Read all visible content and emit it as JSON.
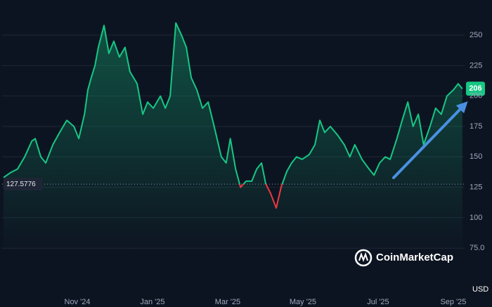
{
  "chart_data": {
    "type": "line",
    "x": [
      0.04,
      0.22,
      0.41,
      0.6,
      0.79,
      0.88,
      1.03,
      1.16,
      1.35,
      1.53,
      1.72,
      1.91,
      2.04,
      2.19,
      2.28,
      2.37,
      2.47,
      2.56,
      2.71,
      2.84,
      2.97,
      3.12,
      3.27,
      3.4,
      3.59,
      3.74,
      3.87,
      4.02,
      4.21,
      4.34,
      4.47,
      4.62,
      4.77,
      4.9,
      5.03,
      5.18,
      5.33,
      5.48,
      5.64,
      5.83,
      5.96,
      6.07,
      6.21,
      6.34,
      6.49,
      6.64,
      6.77,
      6.9,
      7.01,
      7.14,
      7.29,
      7.42,
      7.57,
      7.7,
      7.83,
      7.98,
      8.17,
      8.32,
      8.45,
      8.58,
      8.73,
      8.92,
      9.1,
      9.25,
      9.38,
      9.57,
      9.76,
      9.89,
      10.04,
      10.19,
      10.32,
      10.5,
      10.64,
      10.79,
      10.93,
      11.07,
      11.21,
      11.38,
      11.53,
      11.68,
      11.83,
      12.0,
      12.13,
      12.24
    ],
    "series": [
      {
        "color": "#16c784",
        "below_color": "#ea3943",
        "values": [
          133,
          137,
          140,
          150,
          163,
          165,
          150,
          145,
          160,
          170,
          180,
          175,
          165,
          185,
          205,
          215,
          225,
          240,
          258,
          235,
          245,
          232,
          240,
          220,
          210,
          185,
          195,
          190,
          200,
          190,
          200,
          260,
          250,
          240,
          215,
          205,
          190,
          195,
          175,
          150,
          145,
          165,
          140,
          125,
          130,
          130,
          140,
          145,
          128,
          120,
          108,
          125,
          138,
          145,
          150,
          148,
          152,
          160,
          180,
          170,
          175,
          168,
          160,
          150,
          160,
          148,
          140,
          135,
          145,
          150,
          148,
          165,
          180,
          195,
          175,
          185,
          160,
          175,
          190,
          185,
          200,
          205,
          210,
          206
        ]
      }
    ],
    "xlim": [
      0,
      12.3
    ],
    "xticks": [
      {
        "value": 2,
        "label": "Nov '24"
      },
      {
        "value": 4,
        "label": "Jan '25"
      },
      {
        "value": 6,
        "label": "Mar '25"
      },
      {
        "value": 8,
        "label": "May '25"
      },
      {
        "value": 10,
        "label": "Jul '25"
      },
      {
        "value": 12,
        "label": "Sep '25"
      }
    ],
    "ylim": [
      48,
      276
    ],
    "yticks": [
      {
        "value": 75,
        "label": "75.0"
      },
      100,
      125,
      150,
      175,
      200,
      225,
      250
    ],
    "baseline": 127.5776,
    "last_value": 206,
    "currency": "USD",
    "watermark": "CoinMarketCap",
    "grid": true
  }
}
